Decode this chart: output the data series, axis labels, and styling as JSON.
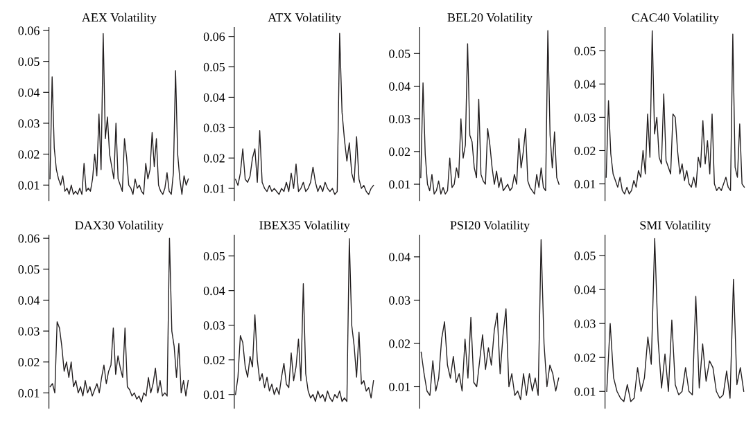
{
  "chart_data": [
    {
      "type": "line",
      "title": "AEX Volatility",
      "tick_labels": "y",
      "grid": false,
      "marker": "none",
      "line_style": "solid",
      "ylim": [
        0.005,
        0.061
      ],
      "yticks": [
        0.01,
        0.02,
        0.03,
        0.04,
        0.05,
        0.06
      ],
      "categories": [
        null,
        null,
        null,
        null,
        null,
        null,
        null,
        null,
        null,
        null,
        null,
        null,
        null,
        null,
        null,
        null,
        null,
        null,
        null,
        null,
        null,
        null,
        null,
        null,
        null,
        null,
        null,
        null,
        null,
        null,
        null,
        null,
        null,
        null,
        null,
        null,
        null,
        null,
        null,
        null,
        null,
        null,
        null,
        null,
        null,
        null,
        null,
        null,
        null,
        null,
        null,
        null,
        null,
        null,
        null,
        null,
        null,
        null,
        null,
        null,
        null,
        null,
        null,
        null,
        null,
        null
      ],
      "series": [
        {
          "color": "#231f20",
          "values": [
            0.012,
            0.045,
            0.022,
            0.015,
            0.012,
            0.01,
            0.013,
            0.008,
            0.009,
            0.007,
            0.01,
            0.007,
            0.008,
            0.007,
            0.009,
            0.007,
            0.017,
            0.008,
            0.009,
            0.008,
            0.012,
            0.02,
            0.013,
            0.033,
            0.015,
            0.059,
            0.025,
            0.032,
            0.02,
            0.016,
            0.012,
            0.03,
            0.012,
            0.01,
            0.008,
            0.025,
            0.019,
            0.01,
            0.009,
            0.007,
            0.012,
            0.009,
            0.01,
            0.008,
            0.007,
            0.017,
            0.012,
            0.015,
            0.027,
            0.016,
            0.025,
            0.01,
            0.008,
            0.007,
            0.009,
            0.014,
            0.008,
            0.007,
            0.014,
            0.047,
            0.02,
            0.012,
            0.007,
            0.013,
            0.01,
            0.012
          ]
        }
      ]
    },
    {
      "type": "line",
      "title": "ATX Volatility",
      "tick_labels": "y",
      "grid": false,
      "marker": "none",
      "line_style": "solid",
      "ylim": [
        0.006,
        0.063
      ],
      "yticks": [
        0.01,
        0.02,
        0.03,
        0.04,
        0.05,
        0.06
      ],
      "categories": [
        null,
        null,
        null,
        null,
        null,
        null,
        null,
        null,
        null,
        null,
        null,
        null,
        null,
        null,
        null,
        null,
        null,
        null,
        null,
        null,
        null,
        null,
        null,
        null,
        null,
        null,
        null,
        null,
        null,
        null,
        null,
        null,
        null,
        null,
        null,
        null,
        null,
        null,
        null,
        null,
        null,
        null,
        null,
        null,
        null,
        null,
        null,
        null,
        null,
        null,
        null,
        null,
        null,
        null,
        null,
        null,
        null,
        null
      ],
      "series": [
        {
          "color": "#231f20",
          "values": [
            0.013,
            0.011,
            0.015,
            0.023,
            0.013,
            0.012,
            0.014,
            0.02,
            0.023,
            0.012,
            0.029,
            0.012,
            0.01,
            0.009,
            0.011,
            0.009,
            0.01,
            0.009,
            0.008,
            0.01,
            0.009,
            0.012,
            0.009,
            0.015,
            0.01,
            0.018,
            0.009,
            0.01,
            0.012,
            0.009,
            0.01,
            0.012,
            0.017,
            0.012,
            0.009,
            0.011,
            0.009,
            0.012,
            0.01,
            0.009,
            0.01,
            0.008,
            0.009,
            0.061,
            0.035,
            0.026,
            0.019,
            0.025,
            0.015,
            0.012,
            0.027,
            0.013,
            0.01,
            0.011,
            0.009,
            0.008,
            0.01,
            0.011
          ]
        }
      ]
    },
    {
      "type": "line",
      "title": "BEL20 Volatility",
      "tick_labels": "y",
      "grid": false,
      "marker": "none",
      "line_style": "solid",
      "ylim": [
        0.005,
        0.058
      ],
      "yticks": [
        0.01,
        0.02,
        0.03,
        0.04,
        0.05
      ],
      "categories": [
        null,
        null,
        null,
        null,
        null,
        null,
        null,
        null,
        null,
        null,
        null,
        null,
        null,
        null,
        null,
        null,
        null,
        null,
        null,
        null,
        null,
        null,
        null,
        null,
        null,
        null,
        null,
        null,
        null,
        null,
        null,
        null,
        null,
        null,
        null,
        null,
        null,
        null,
        null,
        null,
        null,
        null,
        null,
        null,
        null,
        null,
        null,
        null,
        null,
        null,
        null,
        null,
        null,
        null,
        null,
        null,
        null,
        null,
        null,
        null,
        null,
        null,
        null
      ],
      "series": [
        {
          "color": "#231f20",
          "values": [
            0.012,
            0.041,
            0.019,
            0.01,
            0.008,
            0.013,
            0.007,
            0.008,
            0.011,
            0.007,
            0.009,
            0.007,
            0.008,
            0.018,
            0.009,
            0.01,
            0.015,
            0.012,
            0.03,
            0.018,
            0.022,
            0.053,
            0.025,
            0.023,
            0.015,
            0.012,
            0.036,
            0.013,
            0.011,
            0.01,
            0.027,
            0.022,
            0.015,
            0.01,
            0.014,
            0.009,
            0.012,
            0.008,
            0.009,
            0.01,
            0.008,
            0.009,
            0.013,
            0.01,
            0.024,
            0.015,
            0.02,
            0.027,
            0.011,
            0.009,
            0.008,
            0.007,
            0.013,
            0.009,
            0.015,
            0.009,
            0.008,
            0.057,
            0.025,
            0.015,
            0.026,
            0.012,
            0.01
          ]
        }
      ]
    },
    {
      "type": "line",
      "title": "CAC40 Volatility",
      "tick_labels": "y",
      "grid": false,
      "marker": "none",
      "line_style": "solid",
      "ylim": [
        0.005,
        0.057
      ],
      "yticks": [
        0.01,
        0.02,
        0.03,
        0.04,
        0.05
      ],
      "categories": [
        null,
        null,
        null,
        null,
        null,
        null,
        null,
        null,
        null,
        null,
        null,
        null,
        null,
        null,
        null,
        null,
        null,
        null,
        null,
        null,
        null,
        null,
        null,
        null,
        null,
        null,
        null,
        null,
        null,
        null,
        null,
        null,
        null,
        null,
        null,
        null,
        null,
        null,
        null,
        null,
        null,
        null,
        null,
        null,
        null,
        null,
        null,
        null,
        null,
        null,
        null,
        null,
        null,
        null,
        null,
        null,
        null,
        null,
        null,
        null,
        null
      ],
      "series": [
        {
          "color": "#231f20",
          "values": [
            0.012,
            0.035,
            0.019,
            0.013,
            0.011,
            0.009,
            0.012,
            0.008,
            0.007,
            0.009,
            0.007,
            0.008,
            0.011,
            0.009,
            0.014,
            0.012,
            0.02,
            0.013,
            0.031,
            0.018,
            0.056,
            0.025,
            0.03,
            0.018,
            0.016,
            0.037,
            0.017,
            0.015,
            0.013,
            0.031,
            0.03,
            0.02,
            0.013,
            0.016,
            0.011,
            0.014,
            0.01,
            0.009,
            0.012,
            0.009,
            0.018,
            0.015,
            0.029,
            0.016,
            0.023,
            0.013,
            0.031,
            0.01,
            0.008,
            0.009,
            0.008,
            0.01,
            0.012,
            0.009,
            0.008,
            0.055,
            0.015,
            0.012,
            0.028,
            0.01,
            0.009
          ]
        }
      ]
    },
    {
      "type": "line",
      "title": "DAX30 Volatility",
      "tick_labels": "y",
      "grid": false,
      "marker": "none",
      "line_style": "solid",
      "ylim": [
        0.005,
        0.061
      ],
      "yticks": [
        0.01,
        0.02,
        0.03,
        0.04,
        0.05,
        0.06
      ],
      "categories": [
        null,
        null,
        null,
        null,
        null,
        null,
        null,
        null,
        null,
        null,
        null,
        null,
        null,
        null,
        null,
        null,
        null,
        null,
        null,
        null,
        null,
        null,
        null,
        null,
        null,
        null,
        null,
        null,
        null,
        null,
        null,
        null,
        null,
        null,
        null,
        null,
        null,
        null,
        null,
        null,
        null,
        null,
        null,
        null,
        null,
        null,
        null,
        null,
        null,
        null,
        null,
        null,
        null,
        null,
        null,
        null,
        null,
        null,
        null,
        null
      ],
      "series": [
        {
          "color": "#231f20",
          "values": [
            0.012,
            0.013,
            0.01,
            0.033,
            0.031,
            0.025,
            0.017,
            0.02,
            0.015,
            0.02,
            0.012,
            0.014,
            0.01,
            0.012,
            0.009,
            0.014,
            0.01,
            0.012,
            0.009,
            0.011,
            0.013,
            0.01,
            0.015,
            0.019,
            0.013,
            0.017,
            0.019,
            0.031,
            0.016,
            0.022,
            0.018,
            0.015,
            0.031,
            0.012,
            0.011,
            0.009,
            0.01,
            0.008,
            0.009,
            0.007,
            0.01,
            0.009,
            0.015,
            0.01,
            0.013,
            0.018,
            0.01,
            0.014,
            0.009,
            0.01,
            0.009,
            0.06,
            0.03,
            0.025,
            0.015,
            0.026,
            0.01,
            0.014,
            0.009,
            0.014
          ]
        }
      ]
    },
    {
      "type": "line",
      "title": "IBEX35 Volatility",
      "tick_labels": "y",
      "grid": false,
      "marker": "none",
      "line_style": "solid",
      "ylim": [
        0.006,
        0.056
      ],
      "yticks": [
        0.01,
        0.02,
        0.03,
        0.04,
        0.05
      ],
      "categories": [
        null,
        null,
        null,
        null,
        null,
        null,
        null,
        null,
        null,
        null,
        null,
        null,
        null,
        null,
        null,
        null,
        null,
        null,
        null,
        null,
        null,
        null,
        null,
        null,
        null,
        null,
        null,
        null,
        null,
        null,
        null,
        null,
        null,
        null,
        null,
        null,
        null,
        null,
        null,
        null,
        null,
        null,
        null,
        null,
        null,
        null,
        null,
        null,
        null,
        null,
        null,
        null,
        null,
        null,
        null,
        null,
        null,
        null
      ],
      "series": [
        {
          "color": "#231f20",
          "values": [
            0.01,
            0.015,
            0.027,
            0.025,
            0.018,
            0.015,
            0.021,
            0.018,
            0.033,
            0.02,
            0.014,
            0.016,
            0.012,
            0.015,
            0.011,
            0.013,
            0.01,
            0.012,
            0.01,
            0.015,
            0.019,
            0.013,
            0.012,
            0.022,
            0.014,
            0.018,
            0.026,
            0.014,
            0.042,
            0.016,
            0.011,
            0.009,
            0.01,
            0.008,
            0.011,
            0.009,
            0.01,
            0.008,
            0.011,
            0.009,
            0.008,
            0.01,
            0.009,
            0.011,
            0.008,
            0.009,
            0.008,
            0.055,
            0.03,
            0.024,
            0.015,
            0.028,
            0.013,
            0.014,
            0.011,
            0.012,
            0.009,
            0.014
          ]
        }
      ]
    },
    {
      "type": "line",
      "title": "PSI20 Volatility",
      "tick_labels": "y",
      "grid": false,
      "marker": "none",
      "line_style": "solid",
      "ylim": [
        0.005,
        0.045
      ],
      "yticks": [
        0.01,
        0.02,
        0.03,
        0.04
      ],
      "categories": [
        null,
        null,
        null,
        null,
        null,
        null,
        null,
        null,
        null,
        null,
        null,
        null,
        null,
        null,
        null,
        null,
        null,
        null,
        null,
        null,
        null,
        null,
        null,
        null,
        null,
        null,
        null,
        null,
        null,
        null,
        null,
        null,
        null,
        null,
        null,
        null,
        null,
        null,
        null,
        null,
        null,
        null,
        null,
        null,
        null,
        null,
        null,
        null
      ],
      "series": [
        {
          "color": "#231f20",
          "values": [
            0.018,
            0.013,
            0.009,
            0.008,
            0.016,
            0.009,
            0.012,
            0.021,
            0.025,
            0.015,
            0.012,
            0.017,
            0.011,
            0.013,
            0.009,
            0.021,
            0.012,
            0.026,
            0.011,
            0.01,
            0.016,
            0.022,
            0.014,
            0.019,
            0.015,
            0.023,
            0.027,
            0.013,
            0.022,
            0.028,
            0.01,
            0.013,
            0.008,
            0.009,
            0.007,
            0.013,
            0.008,
            0.013,
            0.009,
            0.012,
            0.008,
            0.044,
            0.02,
            0.01,
            0.015,
            0.013,
            0.009,
            0.012
          ]
        }
      ]
    },
    {
      "type": "line",
      "title": "SMI Volatility",
      "tick_labels": "y",
      "grid": false,
      "marker": "none",
      "line_style": "solid",
      "ylim": [
        0.005,
        0.056
      ],
      "yticks": [
        0.01,
        0.02,
        0.03,
        0.04,
        0.05
      ],
      "categories": [
        null,
        null,
        null,
        null,
        null,
        null,
        null,
        null,
        null,
        null,
        null,
        null,
        null,
        null,
        null,
        null,
        null,
        null,
        null,
        null,
        null,
        null,
        null,
        null,
        null,
        null,
        null,
        null,
        null,
        null,
        null,
        null,
        null,
        null,
        null,
        null,
        null,
        null,
        null,
        null,
        null
      ],
      "series": [
        {
          "color": "#231f20",
          "values": [
            0.01,
            0.03,
            0.014,
            0.01,
            0.008,
            0.007,
            0.012,
            0.007,
            0.008,
            0.017,
            0.01,
            0.014,
            0.026,
            0.018,
            0.055,
            0.025,
            0.011,
            0.021,
            0.01,
            0.031,
            0.012,
            0.009,
            0.01,
            0.017,
            0.01,
            0.009,
            0.038,
            0.011,
            0.024,
            0.013,
            0.019,
            0.017,
            0.01,
            0.008,
            0.009,
            0.016,
            0.008,
            0.043,
            0.012,
            0.017,
            0.01
          ]
        }
      ]
    }
  ]
}
